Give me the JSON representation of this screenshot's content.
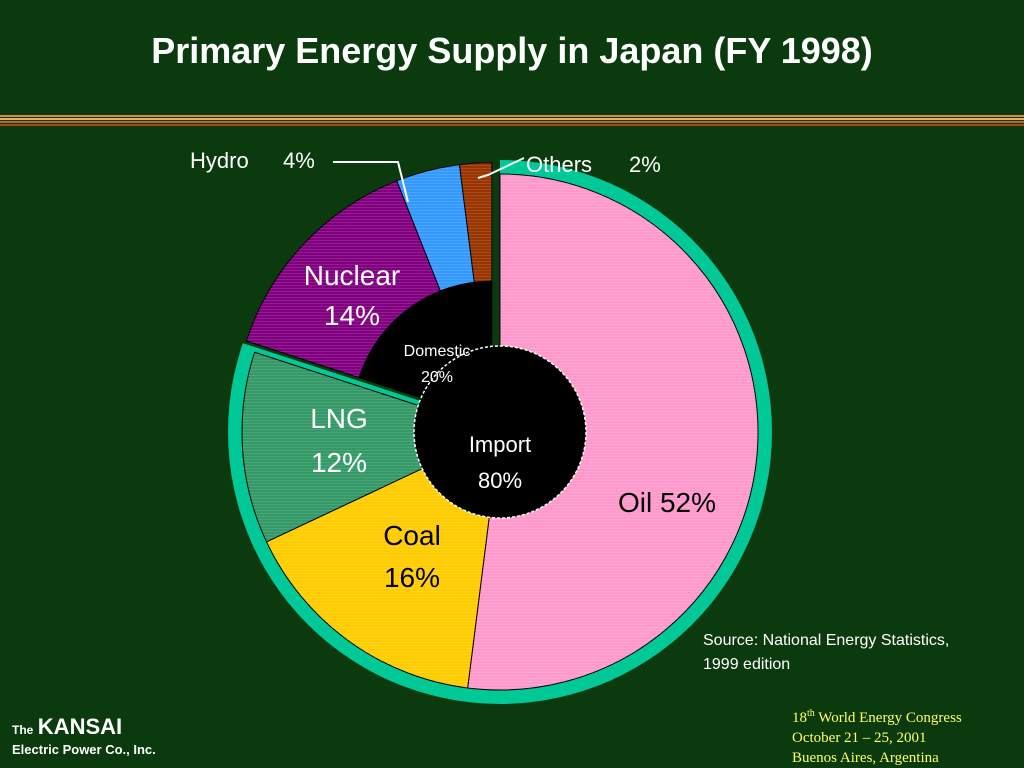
{
  "slide": {
    "title": "Primary Energy Supply in Japan (FY 1998)",
    "source_line1": "Source: National Energy Statistics,",
    "source_line2": "1999 edition",
    "logo_the": "The",
    "logo_name": "KANSAI",
    "logo_sub": "Electric Power Co., Inc.",
    "congress_ordinal": "18",
    "congress_suffix": "th",
    "congress_name": "World Energy Congress",
    "congress_dates": "October 21 – 25, 2001",
    "congress_place": "Buenos Aires, Argentina"
  },
  "colors": {
    "background": "#0b3a0e",
    "title": "#ffffff",
    "congress_text": "#ffff66",
    "import_ring": "#00c896",
    "inner_circle": "#000000"
  },
  "chart_data": {
    "type": "pie",
    "title": "Primary Energy Supply in Japan (FY 1998)",
    "unit": "%",
    "slices": [
      {
        "key": "oil",
        "name": "Oil",
        "value": 52,
        "color": "#ff99cc",
        "label": "Oil 52%",
        "group": "import"
      },
      {
        "key": "coal",
        "name": "Coal",
        "value": 16,
        "color": "#ffcc00",
        "label_line1": "Coal",
        "label_line2": "16%",
        "group": "import"
      },
      {
        "key": "lng",
        "name": "LNG",
        "value": 12,
        "color": "#339966",
        "label_line1": "LNG",
        "label_line2": "12%",
        "group": "import"
      },
      {
        "key": "nuclear",
        "name": "Nuclear",
        "value": 14,
        "color": "#800080",
        "label_line1": "Nuclear",
        "label_line2": "14%",
        "group": "domestic"
      },
      {
        "key": "hydro",
        "name": "Hydro",
        "value": 4,
        "color": "#3399ff",
        "label_name": "Hydro",
        "label_value": "4%",
        "group": "domestic"
      },
      {
        "key": "others",
        "name": "Others",
        "value": 2,
        "color": "#993300",
        "label_name": "Others",
        "label_value": "2%",
        "group": "domestic"
      }
    ],
    "groups": [
      {
        "key": "import",
        "label_line1": "Import",
        "label_line2": "80%",
        "value": 80
      },
      {
        "key": "domestic",
        "label_line1": "Domestic",
        "label_line2": "20%",
        "value": 20
      }
    ]
  }
}
